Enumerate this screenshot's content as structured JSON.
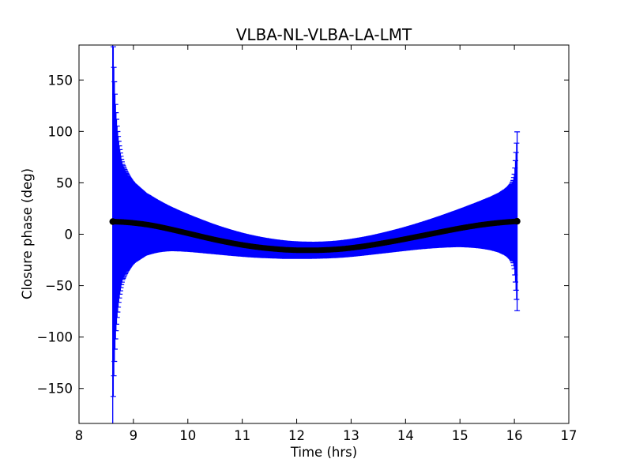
{
  "window": {
    "background": "#ffffff"
  },
  "chart_data": {
    "type": "scatter",
    "subtype": "errorbar",
    "title": "VLBA-NL-VLBA-LA-LMT",
    "xlabel": "Time (hrs)",
    "ylabel": "Closure phase (deg)",
    "xlim": [
      8,
      17
    ],
    "ylim": [
      -184,
      184
    ],
    "xticks": [
      8,
      9,
      10,
      11,
      12,
      13,
      14,
      15,
      16,
      17
    ],
    "xtick_labels": [
      "8",
      "9",
      "10",
      "11",
      "12",
      "13",
      "14",
      "15",
      "16",
      "17"
    ],
    "yticks": [
      150,
      100,
      50,
      0,
      -50,
      -100,
      -150
    ],
    "ytick_labels": [
      "150",
      "100",
      "50",
      "0",
      "−50",
      "−100",
      "−150"
    ],
    "grid": false,
    "legend": null,
    "colors": {
      "errorbar": "#0000ff",
      "marker": "#000000",
      "frame": "#000000",
      "background": "#ffffff"
    },
    "series": [
      {
        "name": "closure_phase",
        "marker": "filled-circle",
        "errorbars": "vertical-with-caps",
        "point_format": [
          "time_hrs",
          "phase_deg",
          "error_deg"
        ],
        "points": [
          [
            8.62,
            12.3,
            197
          ],
          [
            8.63,
            12.3,
            170
          ],
          [
            8.64,
            12.3,
            150
          ],
          [
            8.65,
            12.3,
            136
          ],
          [
            8.66,
            12.2,
            124
          ],
          [
            8.67,
            12.2,
            114
          ],
          [
            8.68,
            12.2,
            106
          ],
          [
            8.7,
            12.1,
            93
          ],
          [
            8.72,
            12.1,
            83
          ],
          [
            8.74,
            12.0,
            74
          ],
          [
            8.76,
            12.0,
            67
          ],
          [
            8.78,
            11.9,
            61
          ],
          [
            8.8,
            11.9,
            56
          ],
          [
            8.85,
            11.7,
            50
          ],
          [
            8.9,
            11.5,
            45
          ],
          [
            8.95,
            11.3,
            41
          ],
          [
            9.0,
            11.0,
            38
          ],
          [
            9.1,
            10.4,
            34
          ],
          [
            9.2,
            9.7,
            30
          ],
          [
            9.4,
            8.0,
            25.5
          ],
          [
            9.6,
            5.8,
            22
          ],
          [
            9.8,
            3.4,
            19.5
          ],
          [
            10.0,
            0.9,
            17.5
          ],
          [
            10.2,
            -1.6,
            15.8
          ],
          [
            10.4,
            -4.1,
            14.3
          ],
          [
            10.6,
            -6.4,
            13.0
          ],
          [
            10.8,
            -8.5,
            11.9
          ],
          [
            11.0,
            -10.4,
            10.9
          ],
          [
            11.2,
            -12.0,
            10.1
          ],
          [
            11.4,
            -13.3,
            9.4
          ],
          [
            11.6,
            -14.3,
            8.8
          ],
          [
            11.8,
            -15.1,
            8.4
          ],
          [
            12.0,
            -15.5,
            8.1
          ],
          [
            12.2,
            -15.6,
            7.9
          ],
          [
            12.4,
            -15.5,
            7.8
          ],
          [
            12.6,
            -15.1,
            7.8
          ],
          [
            12.8,
            -14.4,
            7.9
          ],
          [
            13.0,
            -13.3,
            8.1
          ],
          [
            13.2,
            -11.9,
            8.4
          ],
          [
            13.4,
            -10.3,
            8.8
          ],
          [
            13.6,
            -8.5,
            9.4
          ],
          [
            13.8,
            -6.6,
            10.1
          ],
          [
            14.0,
            -4.6,
            10.9
          ],
          [
            14.2,
            -2.5,
            11.9
          ],
          [
            14.4,
            -0.4,
            13.1
          ],
          [
            14.6,
            1.7,
            14.5
          ],
          [
            14.8,
            3.8,
            16.1
          ],
          [
            15.0,
            5.8,
            17.9
          ],
          [
            15.2,
            7.6,
            20.1
          ],
          [
            15.4,
            9.2,
            22.6
          ],
          [
            15.6,
            10.5,
            25.6
          ],
          [
            15.75,
            11.3,
            28.6
          ],
          [
            15.85,
            11.8,
            31.5
          ],
          [
            15.9,
            12.0,
            33.5
          ],
          [
            15.95,
            12.2,
            36.5
          ],
          [
            15.98,
            12.3,
            40
          ],
          [
            16.0,
            12.4,
            46
          ],
          [
            16.01,
            12.4,
            52
          ],
          [
            16.02,
            12.5,
            59
          ],
          [
            16.03,
            12.5,
            67
          ],
          [
            16.04,
            12.6,
            76
          ],
          [
            16.05,
            12.6,
            87
          ]
        ]
      }
    ]
  }
}
